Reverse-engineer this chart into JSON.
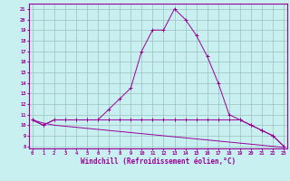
{
  "xlabel": "Windchill (Refroidissement éolien,°C)",
  "bg_color": "#c8f0f0",
  "line_color": "#990099",
  "x": [
    0,
    1,
    2,
    3,
    4,
    5,
    6,
    7,
    8,
    9,
    10,
    11,
    12,
    13,
    14,
    15,
    16,
    17,
    18,
    19,
    20,
    21,
    22,
    23
  ],
  "line1": [
    10.5,
    10.0,
    10.5,
    10.5,
    10.5,
    10.5,
    10.5,
    11.5,
    12.5,
    13.5,
    17.0,
    19.0,
    19.0,
    21.0,
    20.0,
    18.5,
    16.5,
    14.0,
    11.0,
    10.5,
    10.0,
    9.5,
    9.0,
    8.0
  ],
  "line2": [
    10.5,
    10.0,
    10.5,
    10.5,
    10.5,
    10.5,
    10.5,
    10.5,
    10.5,
    10.5,
    10.5,
    10.5,
    10.5,
    10.5,
    10.5,
    10.5,
    10.5,
    10.5,
    10.5,
    10.5,
    10.0,
    9.5,
    9.0,
    8.0
  ],
  "line3": [
    10.5,
    10.2,
    10.0,
    9.9,
    9.8,
    9.7,
    9.6,
    9.5,
    9.4,
    9.3,
    9.2,
    9.1,
    9.0,
    8.9,
    8.8,
    8.7,
    8.6,
    8.5,
    8.4,
    8.3,
    8.2,
    8.1,
    8.0,
    7.9
  ],
  "ylim": [
    8,
    21
  ],
  "yticks": [
    8,
    9,
    10,
    11,
    12,
    13,
    14,
    15,
    16,
    17,
    18,
    19,
    20,
    21
  ],
  "xticks": [
    0,
    1,
    2,
    3,
    4,
    5,
    6,
    7,
    8,
    9,
    10,
    11,
    12,
    13,
    14,
    15,
    16,
    17,
    18,
    19,
    20,
    21,
    22,
    23
  ],
  "grid_color": "#9ec0c0",
  "markersize": 2.0,
  "linewidth": 0.7
}
